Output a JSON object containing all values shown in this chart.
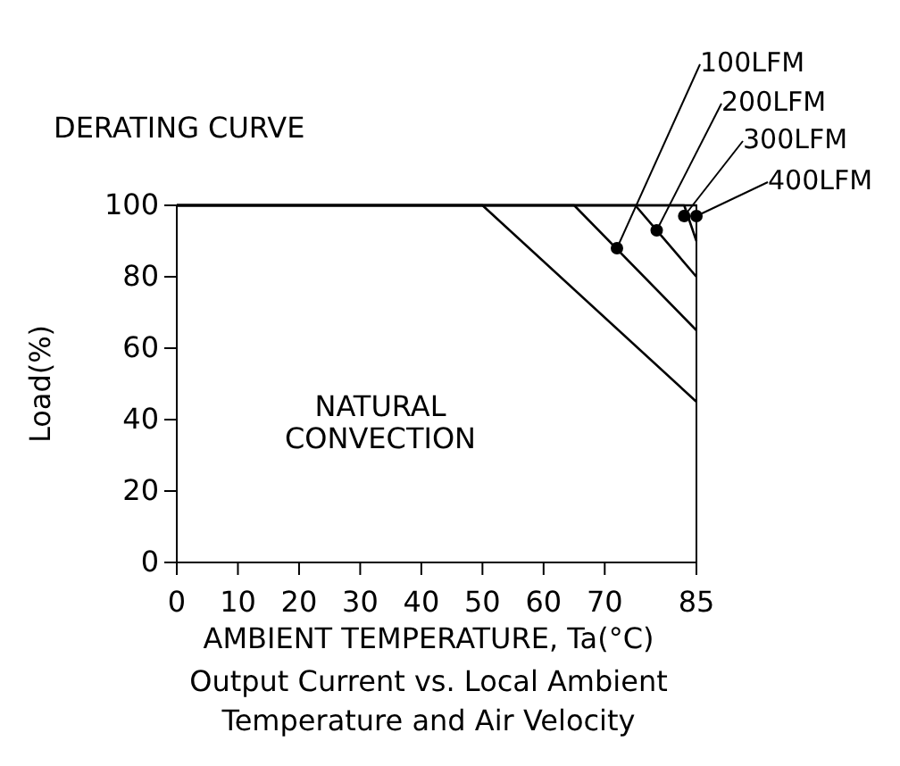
{
  "chart_data": {
    "type": "line",
    "title": "DERATING CURVE",
    "xlabel": "AMBIENT TEMPERATURE, Ta(°C)",
    "ylabel": "Load(%)",
    "xlim": [
      0,
      85
    ],
    "xticks": [
      0,
      10,
      20,
      30,
      40,
      50,
      60,
      70,
      85
    ],
    "ylim": [
      0,
      100
    ],
    "yticks": [
      0,
      20,
      40,
      60,
      80,
      100
    ],
    "grid": false,
    "marker": "none",
    "line_style": "solid",
    "color": "#000000",
    "series": [
      {
        "x": [
          0,
          50,
          85
        ],
        "values": [
          100,
          100,
          45
        ]
      },
      {
        "x": [
          0,
          65,
          85
        ],
        "values": [
          100,
          100,
          65
        ]
      },
      {
        "x": [
          0,
          75,
          85
        ],
        "values": [
          100,
          100,
          80
        ]
      },
      {
        "x": [
          0,
          83,
          85
        ],
        "values": [
          100,
          100,
          90
        ]
      },
      {
        "x": [
          0,
          85
        ],
        "values": [
          100,
          100
        ]
      }
    ],
    "annotations": [
      {
        "text": "100LFM",
        "x": 72,
        "y": 88
      },
      {
        "text": "200LFM",
        "x": 78.5,
        "y": 93
      },
      {
        "text": "300LFM",
        "x": 83,
        "y": 97
      },
      {
        "text": "400LFM",
        "x": 85,
        "y": 97
      },
      "NATURAL CONVECTION",
      "Output Current vs. Local Ambient Temperature and Air Velocity"
    ]
  }
}
